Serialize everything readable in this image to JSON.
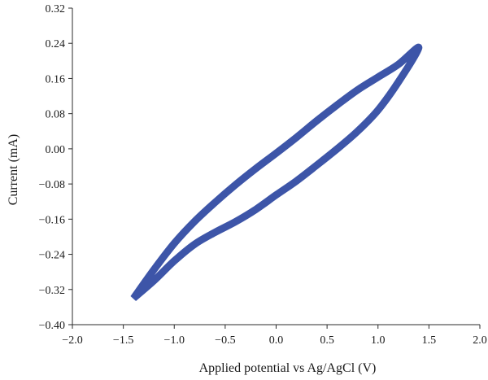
{
  "chart_data": {
    "type": "line",
    "title": "",
    "xlabel": "Applied potential vs Ag/AgCl (V)",
    "ylabel": "Current (mA)",
    "xlim": [
      -2.0,
      2.0
    ],
    "ylim": [
      -0.4,
      0.32
    ],
    "x_ticks": [
      "−2.0",
      "−1.5",
      "−1.0",
      "−0.5",
      "0.0",
      "0.5",
      "1.0",
      "1.5",
      "2.0"
    ],
    "y_ticks": [
      "0.32",
      "0.24",
      "0.16",
      "0.08",
      "0.00",
      "−0.08",
      "−0.16",
      "−0.24",
      "−0.32",
      "−0.40"
    ],
    "grid": false,
    "line_color": "#3d55a8",
    "series": [
      {
        "name": "",
        "closed": true,
        "x": [
          -1.4,
          -1.2,
          -1.0,
          -0.8,
          -0.6,
          -0.4,
          -0.2,
          0.0,
          0.2,
          0.4,
          0.6,
          0.8,
          1.0,
          1.2,
          1.4,
          1.2,
          1.0,
          0.8,
          0.6,
          0.4,
          0.2,
          0.0,
          -0.2,
          -0.4,
          -0.6,
          -0.8,
          -1.0,
          -1.2,
          -1.4
        ],
        "y": [
          -0.34,
          -0.275,
          -0.215,
          -0.165,
          -0.122,
          -0.082,
          -0.045,
          -0.01,
          0.026,
          0.064,
          0.1,
          0.134,
          0.163,
          0.192,
          0.23,
          0.152,
          0.088,
          0.04,
          0.0,
          -0.037,
          -0.073,
          -0.105,
          -0.138,
          -0.166,
          -0.19,
          -0.217,
          -0.255,
          -0.3,
          -0.34
        ]
      }
    ]
  }
}
